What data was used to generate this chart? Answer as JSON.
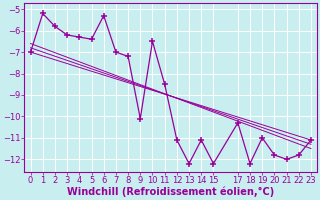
{
  "title": "",
  "xlabel": "Windchill (Refroidissement éolien,°C)",
  "ylabel": "",
  "background_color": "#c8eef0",
  "grid_color": "#b0d8dc",
  "line_color": "#990099",
  "x_data": [
    0,
    1,
    2,
    3,
    4,
    5,
    6,
    7,
    8,
    9,
    10,
    11,
    12,
    13,
    14,
    15,
    17,
    18,
    19,
    20,
    21,
    22,
    23
  ],
  "y_data": [
    -7.0,
    -5.2,
    -5.8,
    -6.2,
    -6.3,
    -6.4,
    -5.3,
    -7.0,
    -7.2,
    -10.1,
    -6.5,
    -8.5,
    -11.1,
    -12.2,
    -11.1,
    -12.2,
    -10.3,
    -12.2,
    -11.0,
    -11.8,
    -12.0,
    -11.8,
    -11.1
  ],
  "trend_lines": [
    {
      "x": [
        0,
        23
      ],
      "y": [
        -7.0,
        -11.1
      ]
    },
    {
      "x": [
        0,
        23
      ],
      "y": [
        -6.8,
        -11.3
      ]
    },
    {
      "x": [
        0,
        23
      ],
      "y": [
        -6.6,
        -11.5
      ]
    }
  ],
  "xlim": [
    -0.5,
    23.5
  ],
  "ylim": [
    -12.6,
    -4.7
  ],
  "xticks": [
    0,
    1,
    2,
    3,
    4,
    5,
    6,
    7,
    8,
    9,
    10,
    11,
    12,
    13,
    14,
    15,
    17,
    18,
    19,
    20,
    21,
    22,
    23
  ],
  "yticks": [
    -12,
    -11,
    -10,
    -9,
    -8,
    -7,
    -6,
    -5
  ],
  "font_color": "#990099",
  "tick_font_size": 6,
  "xlabel_font_size": 7
}
